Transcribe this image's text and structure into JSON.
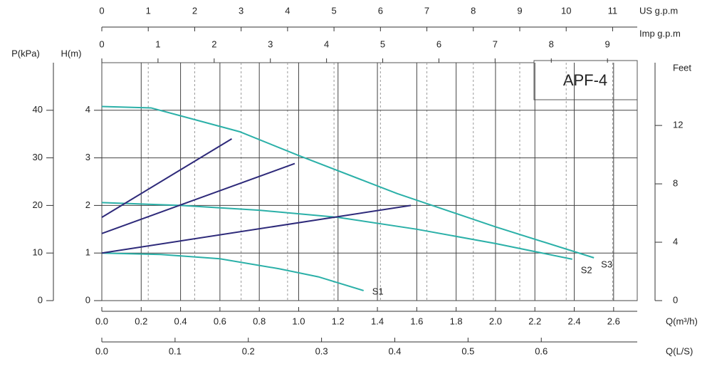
{
  "chart_data": {
    "type": "line",
    "title": "APF-4",
    "xlabel": "Q(m³/h)",
    "xlim": [
      0,
      2.72
    ],
    "xticks": [
      {
        "value": 0,
        "label": "0.0"
      },
      0.2,
      0.4,
      0.6,
      0.8,
      {
        "value": 1,
        "label": "1.0"
      },
      1.2,
      1.4,
      1.6,
      1.8,
      {
        "value": 2,
        "label": "2.0"
      },
      2.2,
      2.4,
      2.6
    ],
    "ylabel": "H(m)",
    "ylim": [
      0,
      5
    ],
    "yticks": [
      0,
      1,
      2,
      3,
      4
    ],
    "y2label": "Feet",
    "y2lim": [
      0,
      16.3
    ],
    "y2ticks": [
      0,
      4,
      8,
      12
    ],
    "p_axis": {
      "label": "P(kPa)",
      "lim": [
        0,
        50
      ],
      "ticks": [
        0,
        10,
        20,
        30,
        40
      ]
    },
    "us_gpm_axis": {
      "label": "US g.p.m",
      "lim": [
        0,
        11.53
      ],
      "ticks": [
        0,
        1,
        2,
        3,
        4,
        5,
        6,
        7,
        8,
        9,
        10,
        11
      ]
    },
    "imp_gpm_axis": {
      "label": "Imp g.p.m",
      "lim": [
        0,
        9.53
      ],
      "ticks": [
        0,
        1,
        2,
        3,
        4,
        5,
        6,
        7,
        8,
        9
      ]
    },
    "ls_axis": {
      "label": "Q(L/S)",
      "lim": [
        0,
        0.731
      ],
      "ticks": [
        {
          "value": 0,
          "label": "0.0"
        },
        0.1,
        0.2,
        0.3,
        0.4,
        0.5,
        0.6
      ]
    },
    "grid": true,
    "series": [
      {
        "name": "S3",
        "color": "#2bb0a8",
        "x": [
          0,
          0.25,
          0.7,
          1.0,
          1.5,
          2.0,
          2.5
        ],
        "values": [
          4.08,
          4.05,
          3.55,
          3.05,
          2.25,
          1.55,
          0.9
        ]
      },
      {
        "name": "S2",
        "color": "#2bb0a8",
        "x": [
          0,
          0.4,
          0.8,
          1.2,
          1.6,
          2.0,
          2.39
        ],
        "values": [
          2.06,
          2.0,
          1.9,
          1.75,
          1.5,
          1.2,
          0.87
        ]
      },
      {
        "name": "S1",
        "color": "#2bb0a8",
        "x": [
          0,
          0.3,
          0.6,
          0.9,
          1.1,
          1.33
        ],
        "values": [
          1.0,
          0.97,
          0.88,
          0.67,
          0.5,
          0.21
        ]
      },
      {
        "color": "#2e2a7a",
        "x": [
          0,
          0.66
        ],
        "values": [
          1.75,
          3.4
        ]
      },
      {
        "color": "#2e2a7a",
        "x": [
          0,
          0.98
        ],
        "values": [
          1.41,
          2.88
        ]
      },
      {
        "color": "#2e2a7a",
        "x": [
          0,
          1.57
        ],
        "values": [
          1.0,
          2.0
        ]
      }
    ]
  }
}
